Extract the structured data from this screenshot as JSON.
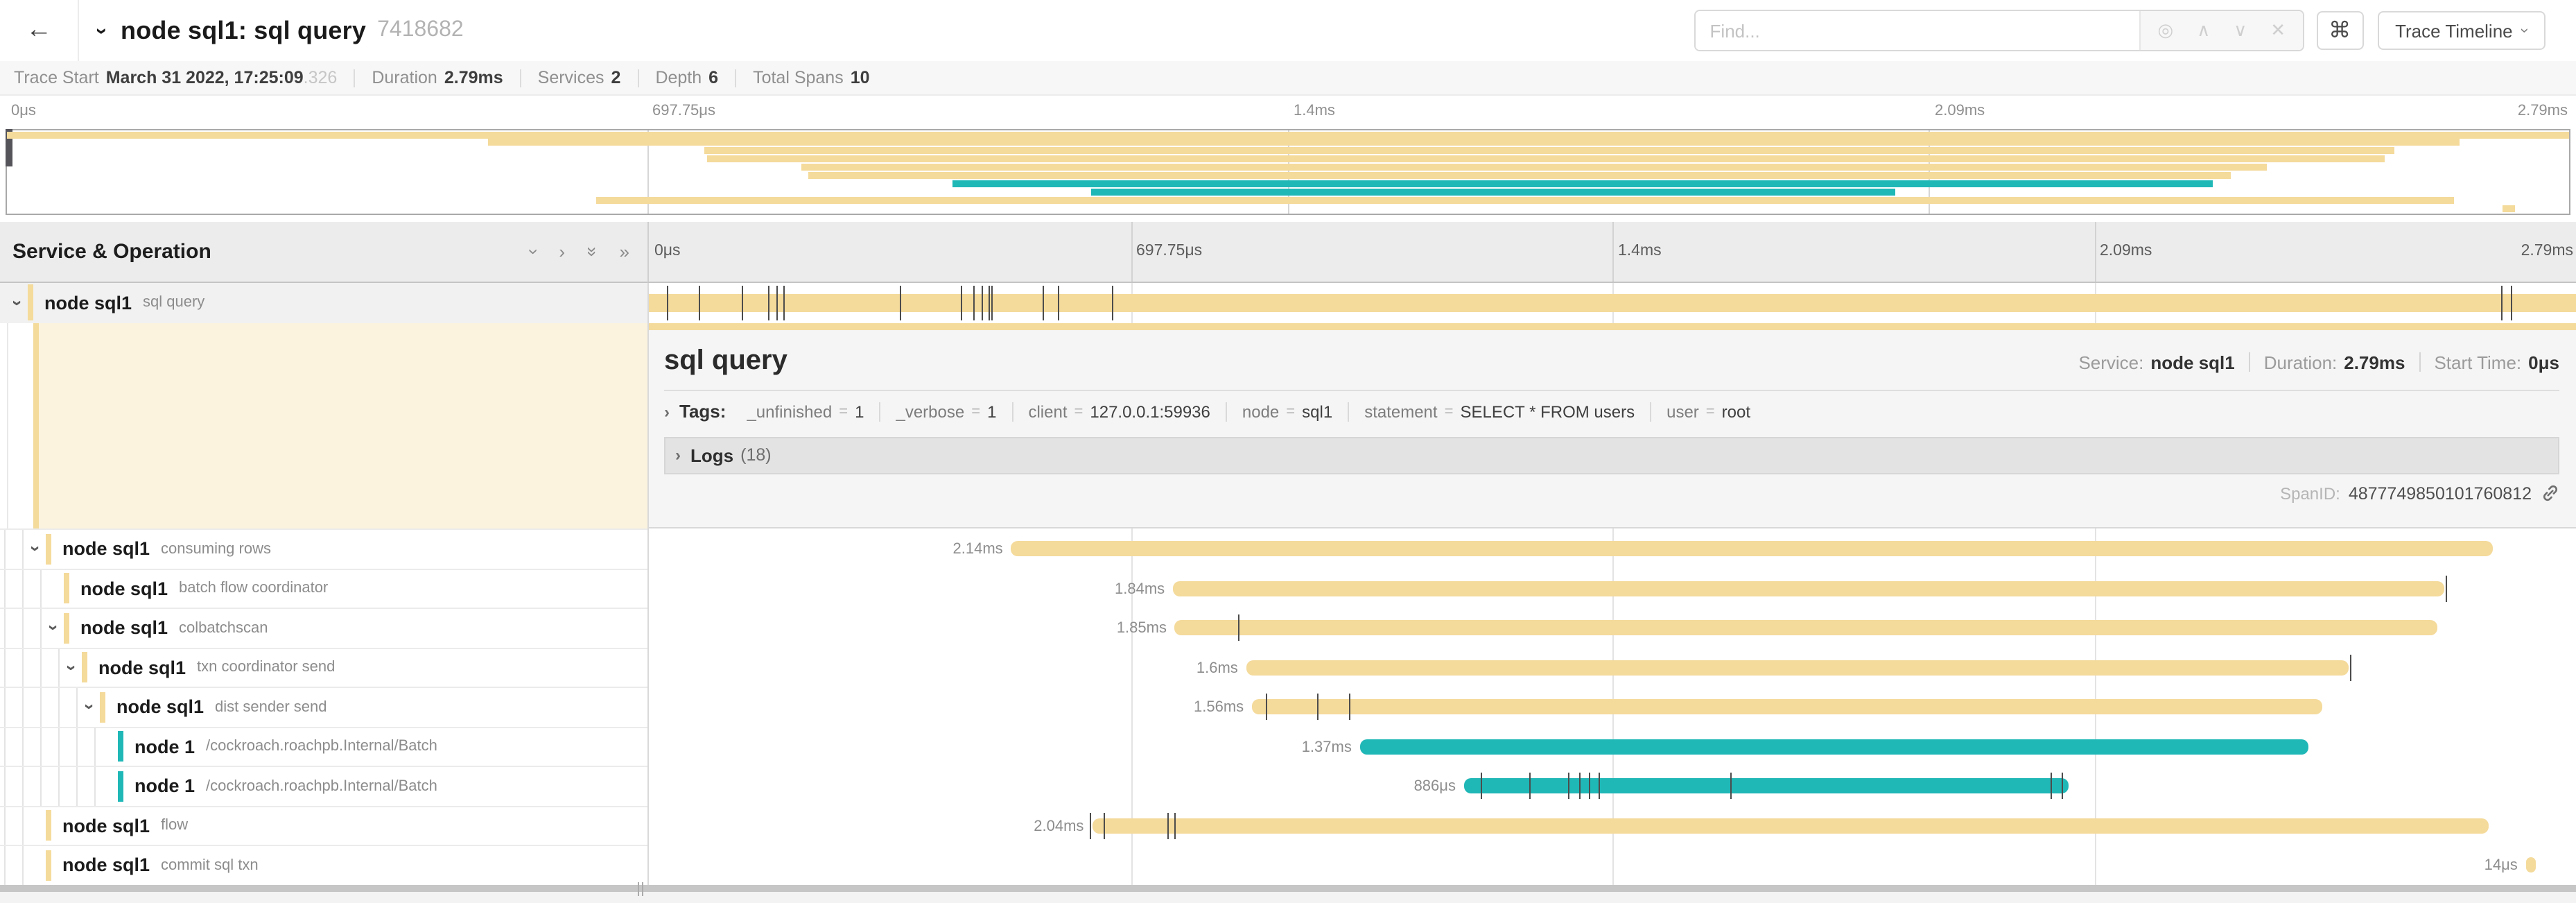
{
  "colors": {
    "tan": "#f4da9b",
    "teal": "#20b7b7",
    "cream": "#fbf3dd"
  },
  "icons": {
    "back": "←",
    "collapse_chevron": "›",
    "locate": "◎",
    "prev": "∧",
    "next": "∨",
    "clear": "✕",
    "command": "⌘",
    "caret": "›",
    "collapse_one": "›",
    "expand_one": "›",
    "collapse_all": "»",
    "expand_all": "»"
  },
  "header": {
    "title": "node sql1: sql query",
    "trace_id": "7418682",
    "find_placeholder": "Find...",
    "view_button": "Trace Timeline"
  },
  "summary": {
    "trace_start_label": "Trace Start",
    "trace_start_value": "March 31 2022, 17:25:09",
    "trace_start_fraction": ".326",
    "duration_label": "Duration",
    "duration_value": "2.79ms",
    "services_label": "Services",
    "services_value": "2",
    "depth_label": "Depth",
    "depth_value": "6",
    "spans_label": "Total Spans",
    "spans_value": "10"
  },
  "timeline": {
    "left_header": "Service & Operation",
    "ticks": [
      "0μs",
      "697.75μs",
      "1.4ms",
      "2.09ms",
      "2.79ms"
    ]
  },
  "spans": [
    {
      "service": "node sql1",
      "operation": "sql query",
      "level": 0,
      "color": "tan",
      "chevron": true,
      "start": 0,
      "end": 1,
      "duration_label": "",
      "ticks": [
        0.0095,
        0.026,
        0.048,
        0.062,
        0.066,
        0.07,
        0.13,
        0.162,
        0.168,
        0.1725,
        0.176,
        0.178,
        0.204,
        0.212,
        0.24,
        0.961,
        0.966
      ]
    },
    {
      "service": "node sql1",
      "operation": "consuming rows",
      "level": 1,
      "color": "tan",
      "chevron": true,
      "start": 0.188,
      "end": 0.957,
      "duration_label": "2.14ms",
      "ticks": []
    },
    {
      "service": "node sql1",
      "operation": "batch flow coordinator",
      "level": 2,
      "color": "tan",
      "chevron": false,
      "start": 0.272,
      "end": 0.932,
      "duration_label": "1.84ms",
      "ticks": [
        0.9325
      ]
    },
    {
      "service": "node sql1",
      "operation": "colbatchscan",
      "level": 2,
      "color": "tan",
      "chevron": true,
      "start": 0.273,
      "end": 0.928,
      "duration_label": "1.85ms",
      "ticks": [
        0.306
      ]
    },
    {
      "service": "node sql1",
      "operation": "txn coordinator send",
      "level": 3,
      "color": "tan",
      "chevron": true,
      "start": 0.31,
      "end": 0.882,
      "duration_label": "1.6ms",
      "ticks": [
        0.883
      ]
    },
    {
      "service": "node sql1",
      "operation": "dist sender send",
      "level": 4,
      "color": "tan",
      "chevron": true,
      "start": 0.313,
      "end": 0.868,
      "duration_label": "1.56ms",
      "ticks": [
        0.32,
        0.347,
        0.363
      ]
    },
    {
      "service": "node 1",
      "operation": "/cockroach.roachpb.Internal/Batch",
      "level": 5,
      "color": "teal",
      "chevron": false,
      "start": 0.369,
      "end": 0.861,
      "duration_label": "1.37ms",
      "ticks": []
    },
    {
      "service": "node 1",
      "operation": "/cockroach.roachpb.Internal/Batch",
      "level": 5,
      "color": "teal",
      "chevron": false,
      "start": 0.423,
      "end": 0.737,
      "duration_label": "886μs",
      "ticks": [
        0.432,
        0.457,
        0.477,
        0.483,
        0.488,
        0.493,
        0.561,
        0.727,
        0.733
      ]
    },
    {
      "service": "node sql1",
      "operation": "flow",
      "level": 1,
      "color": "tan",
      "chevron": false,
      "start": 0.23,
      "end": 0.955,
      "duration_label": "2.04ms",
      "ticks": [
        0.2285,
        0.236,
        0.269,
        0.2725
      ]
    },
    {
      "service": "node sql1",
      "operation": "commit sql txn",
      "level": 1,
      "color": "tan",
      "chevron": false,
      "start": 0.974,
      "end": 0.979,
      "duration_label": "14μs",
      "ticks": []
    }
  ],
  "detail": {
    "title": "sql query",
    "service_label": "Service:",
    "service_value": "node sql1",
    "duration_label": "Duration:",
    "duration_value": "2.79ms",
    "start_label": "Start Time:",
    "start_value": "0μs",
    "tags_label": "Tags:",
    "tags": [
      {
        "key": "_unfinished",
        "value": "1"
      },
      {
        "key": "_verbose",
        "value": "1"
      },
      {
        "key": "client",
        "value": "127.0.0.1:59936"
      },
      {
        "key": "node",
        "value": "sql1"
      },
      {
        "key": "statement",
        "value": "SELECT * FROM users"
      },
      {
        "key": "user",
        "value": "root"
      }
    ],
    "logs_label": "Logs",
    "logs_count": "(18)",
    "spanid_label": "SpanID:",
    "spanid_value": "4877749850101760812"
  }
}
